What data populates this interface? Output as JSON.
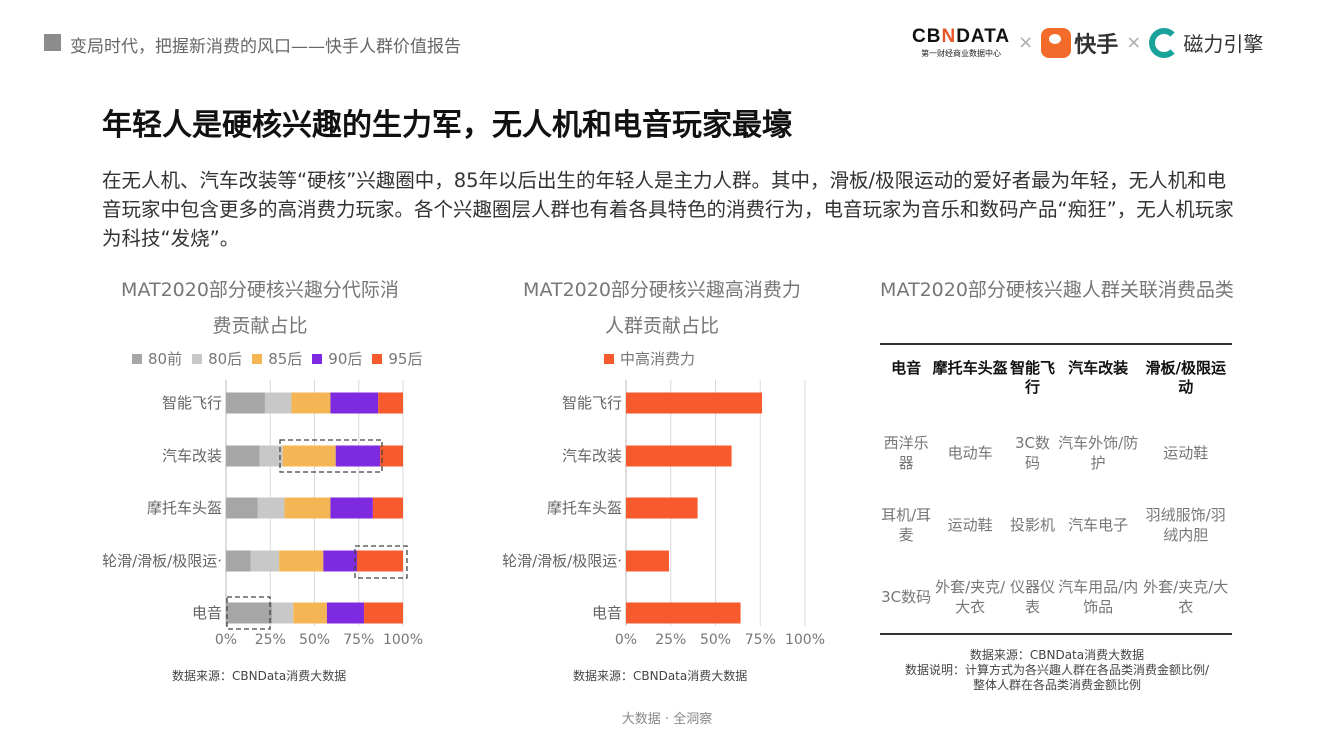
{
  "header": {
    "title": "变局时代，把握新消费的风口——快手人群价值报告"
  },
  "logos": {
    "cbn": "CBNDATA",
    "cbn_sub": "第一财经商业数据中心",
    "times": "×",
    "kuaishou": "快手",
    "cili": "磁力引擎"
  },
  "headline": "年轻人是硬核兴趣的生力军，无人机和电音玩家最壕",
  "description": "在无人机、汽车改装等“硬核”兴趣圈中，85年以后出生的年轻人是主力人群。其中，滑板/极限运动的爱好者最为年轻，无人机和电音玩家中包含更多的高消费力玩家。各个兴趣圈层人群也有着各具特色的消费行为，电音玩家为音乐和数码产品“痴狂”，无人机玩家为科技“发烧”。",
  "chart_data": [
    {
      "type": "bar",
      "stacked": true,
      "orientation": "horizontal",
      "title_line1": "MAT2020部分硬核兴趣分代际消",
      "title_line2": "费贡献占比",
      "categories": [
        "智能飞行",
        "汽车改装",
        "摩托车头盔",
        "轮滑/滑板/极限运·",
        "电音"
      ],
      "series": [
        {
          "name": "80前",
          "color": "#a6a6a6",
          "values": [
            22,
            19,
            18,
            14,
            26
          ]
        },
        {
          "name": "80后",
          "color": "#c8c8c8",
          "values": [
            15,
            13,
            15,
            16,
            12
          ]
        },
        {
          "name": "85后",
          "color": "#f4b654",
          "values": [
            22,
            30,
            26,
            25,
            19
          ]
        },
        {
          "name": "90后",
          "color": "#7d2ae0",
          "values": [
            27,
            25,
            24,
            19,
            21
          ]
        },
        {
          "name": "95后",
          "color": "#f75a2d",
          "values": [
            14,
            13,
            17,
            26,
            22
          ]
        }
      ],
      "xticks": [
        "0%",
        "25%",
        "50%",
        "75%",
        "100%"
      ],
      "xlim": [
        0,
        100
      ],
      "source": "数据来源：CBNData消费大数据"
    },
    {
      "type": "bar",
      "orientation": "horizontal",
      "title_line1": "MAT2020部分硬核兴趣高消费力",
      "title_line2": "人群贡献占比",
      "categories": [
        "智能飞行",
        "汽车改装",
        "摩托车头盔",
        "轮滑/滑板/极限运·",
        "电音"
      ],
      "series": [
        {
          "name": "中高消费力",
          "color": "#f75a2d",
          "values": [
            76,
            59,
            40,
            24,
            64
          ]
        }
      ],
      "xticks": [
        "0%",
        "25%",
        "50%",
        "75%",
        "100%"
      ],
      "xlim": [
        0,
        100
      ],
      "source": "数据来源：CBNData消费大数据"
    }
  ],
  "table": {
    "title": "MAT2020部分硬核兴趣人群关联消费品类",
    "headers": [
      "电音",
      "摩托车头盔",
      "智能飞行",
      "汽车改装",
      "滑板/极限运动"
    ],
    "rows": [
      [
        "西洋乐器",
        "电动车",
        "3C数码",
        "汽车外饰/防护",
        "运动鞋"
      ],
      [
        "耳机/耳麦",
        "运动鞋",
        "投影机",
        "汽车电子",
        "羽绒服饰/羽绒内胆"
      ],
      [
        "3C数码",
        "外套/夹克/大衣",
        "仪器仪表",
        "汽车用品/内饰品",
        "外套/夹克/大衣"
      ]
    ],
    "source": "数据来源：CBNData消费大数据",
    "note1": "数据说明：计算方式为各兴趣人群在各品类消费金额比例/",
    "note2": "整体人群在各品类消费金额比例"
  },
  "footer": "大数据 · 全洞察"
}
